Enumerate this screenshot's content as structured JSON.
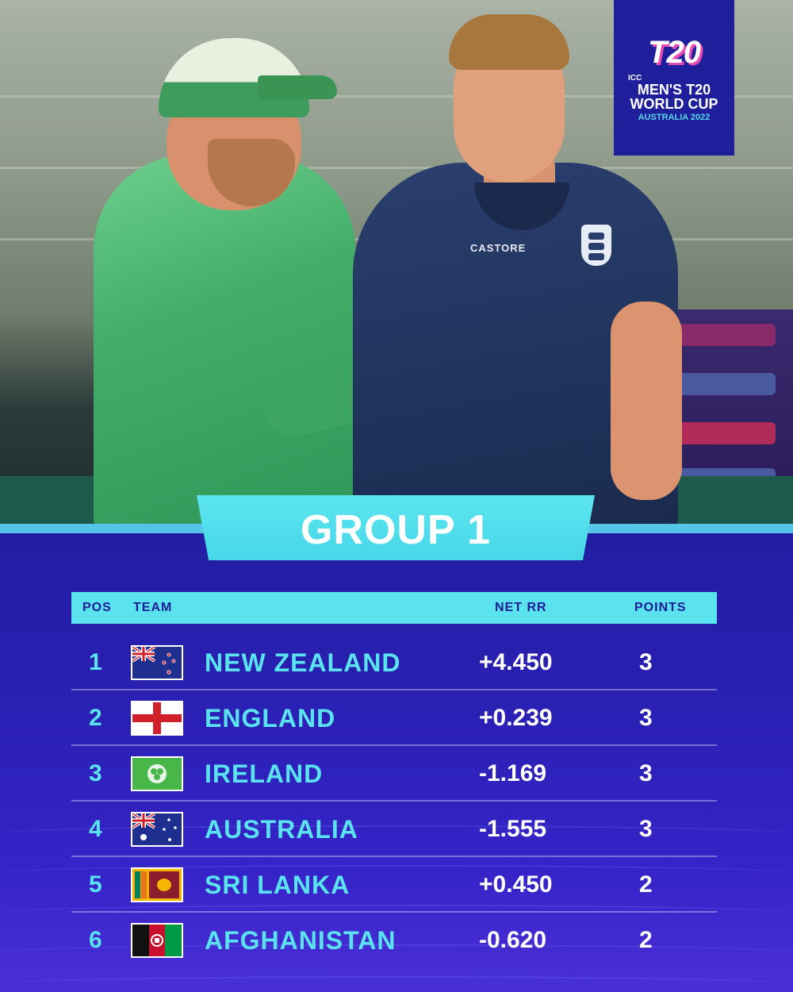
{
  "logo": {
    "mark": "T20",
    "icc": "ICC",
    "line1": "MEN'S T20",
    "line2": "WORLD CUP",
    "line3": "AUSTRALIA 2022"
  },
  "photo": {
    "shirt_brand": "CASTORE"
  },
  "group_title": "GROUP 1",
  "table": {
    "headers": {
      "pos": "POS",
      "team": "TEAM",
      "nrr": "NET RR",
      "points": "POINTS"
    },
    "rows": [
      {
        "pos": "1",
        "team": "NEW ZEALAND",
        "nrr": "+4.450",
        "points": "3",
        "flag": "new-zealand-flag"
      },
      {
        "pos": "2",
        "team": "ENGLAND",
        "nrr": "+0.239",
        "points": "3",
        "flag": "england-flag"
      },
      {
        "pos": "3",
        "team": "IRELAND",
        "nrr": "-1.169",
        "points": "3",
        "flag": "ireland-flag"
      },
      {
        "pos": "4",
        "team": "AUSTRALIA",
        "nrr": "-1.555",
        "points": "3",
        "flag": "australia-flag"
      },
      {
        "pos": "5",
        "team": "SRI LANKA",
        "nrr": "+0.450",
        "points": "2",
        "flag": "sri-lanka-flag"
      },
      {
        "pos": "6",
        "team": "AFGHANISTAN",
        "nrr": "-0.620",
        "points": "2",
        "flag": "afghanistan-flag"
      }
    ]
  },
  "colors": {
    "panel": "#2a20b4",
    "accent": "#5ae3ef",
    "logo_bg": "#1f1f9c",
    "logo_pink": "#e64ab0"
  }
}
